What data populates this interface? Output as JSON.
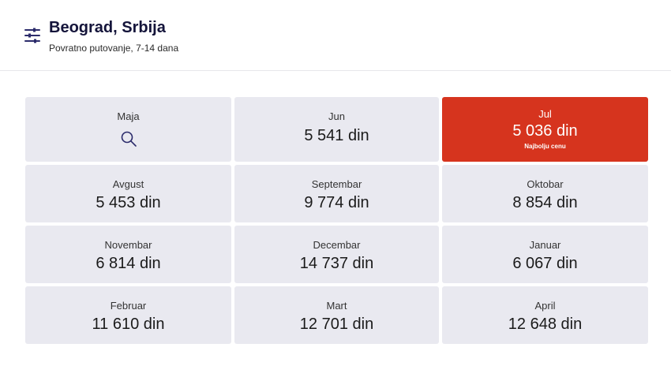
{
  "header": {
    "title": "Beograd, Srbija",
    "subtitle": "Povratno putovanje, 7-14 dana",
    "filter_icon": "sliders-icon"
  },
  "colors": {
    "accent": "#d6341e",
    "cell_bg": "#e9e9f0",
    "icon": "#2b2b6b"
  },
  "grid": {
    "cells": [
      {
        "month": "Maja",
        "icon": "search-icon"
      },
      {
        "month": "Jun",
        "price": "5 541 din"
      },
      {
        "month": "Jul",
        "price": "5 036 din",
        "badge": "Najbolju cenu"
      },
      {
        "month": "Avgust",
        "price": "5 453 din"
      },
      {
        "month": "Septembar",
        "price": "9 774 din"
      },
      {
        "month": "Oktobar",
        "price": "8 854 din"
      },
      {
        "month": "Novembar",
        "price": "6 814 din"
      },
      {
        "month": "Decembar",
        "price": "14 737 din"
      },
      {
        "month": "Januar",
        "price": "6 067 din"
      },
      {
        "month": "Februar",
        "price": "11 610 din"
      },
      {
        "month": "Mart",
        "price": "12 701 din"
      },
      {
        "month": "April",
        "price": "12 648 din"
      }
    ]
  }
}
